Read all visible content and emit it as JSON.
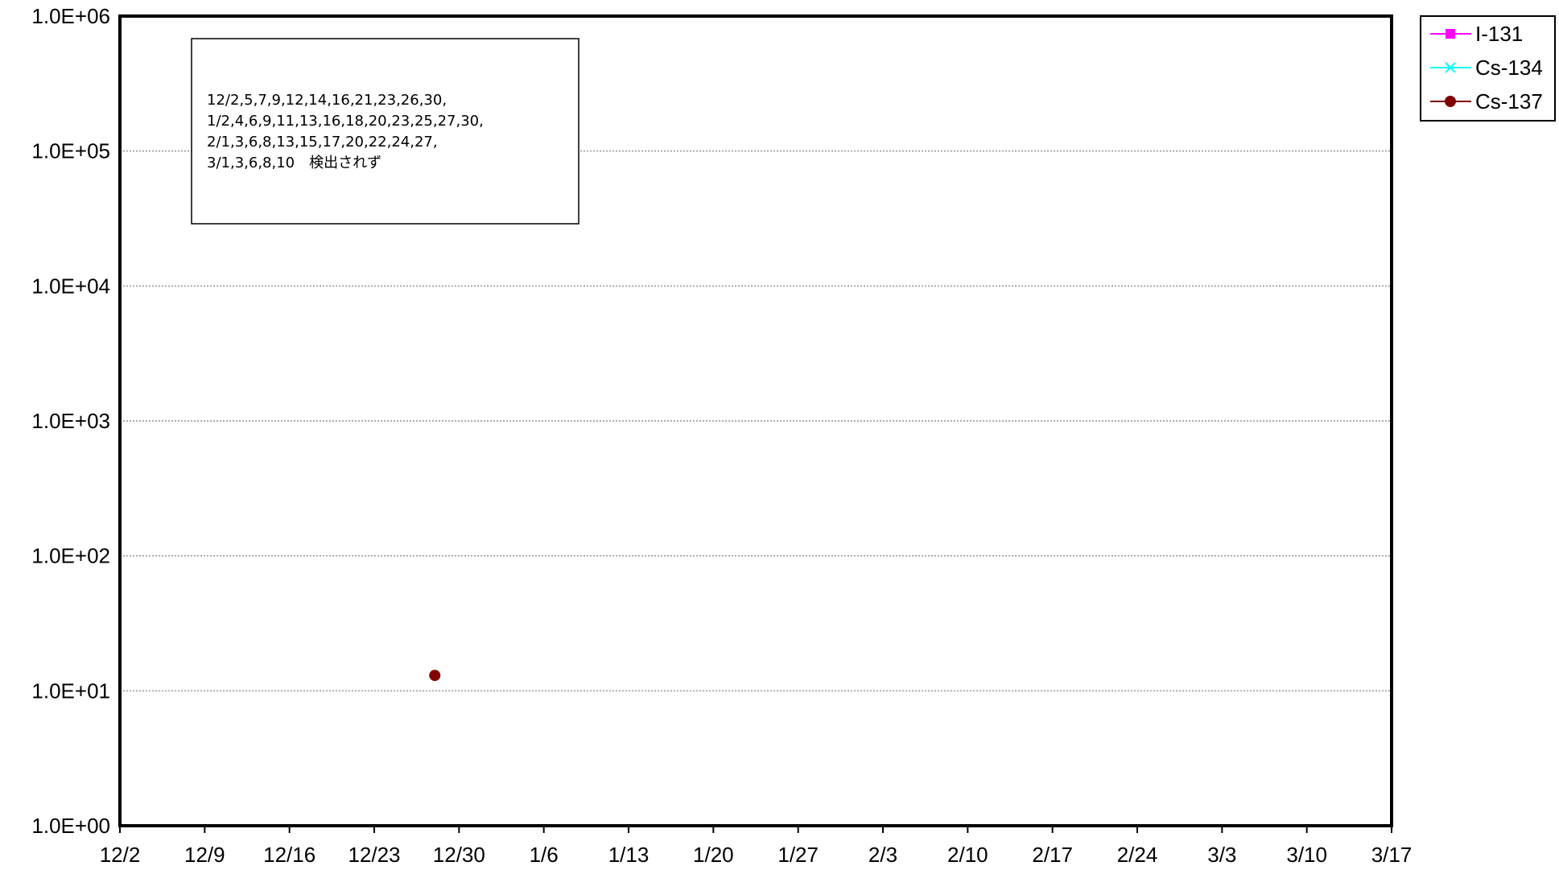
{
  "chart_data": {
    "type": "scatter",
    "title": "",
    "xlabel": "",
    "ylabel": "",
    "y_scale": "log",
    "ylim": [
      1,
      1000000
    ],
    "xlim": [
      "12/2",
      "3/17"
    ],
    "x_tick_labels": [
      "12/2",
      "12/9",
      "12/16",
      "12/23",
      "12/30",
      "1/6",
      "1/13",
      "1/20",
      "1/27",
      "2/3",
      "2/10",
      "2/17",
      "2/24",
      "3/3",
      "3/10",
      "3/17"
    ],
    "y_tick_labels": [
      "1.0E+06",
      "1.0E+05",
      "1.0E+04",
      "1.0E+03",
      "1.0E+02",
      "1.0E+01",
      "1.0E+00"
    ],
    "y_tick_values": [
      1000000,
      100000,
      10000,
      1000,
      100,
      10,
      1
    ],
    "grid": "horizontal dotted",
    "legend_position": "top-right outside plot",
    "series": [
      {
        "name": "I-131",
        "color": "#ff00ff",
        "marker": "square",
        "points": []
      },
      {
        "name": "Cs-134",
        "color": "#00ffff",
        "marker": "x",
        "points": []
      },
      {
        "name": "Cs-137",
        "color": "#800000",
        "marker": "circle",
        "points": [
          {
            "x": "12/28",
            "y": 13
          }
        ]
      }
    ],
    "annotation": {
      "lines": [
        "12/2,5,7,9,12,14,16,21,23,26,30,",
        "1/2,4,6,9,11,13,16,18,20,23,25,27,30,",
        "2/1,3,6,8,13,15,17,20,22,24,27,",
        "3/1,3,6,8,10　検出されず"
      ]
    }
  }
}
